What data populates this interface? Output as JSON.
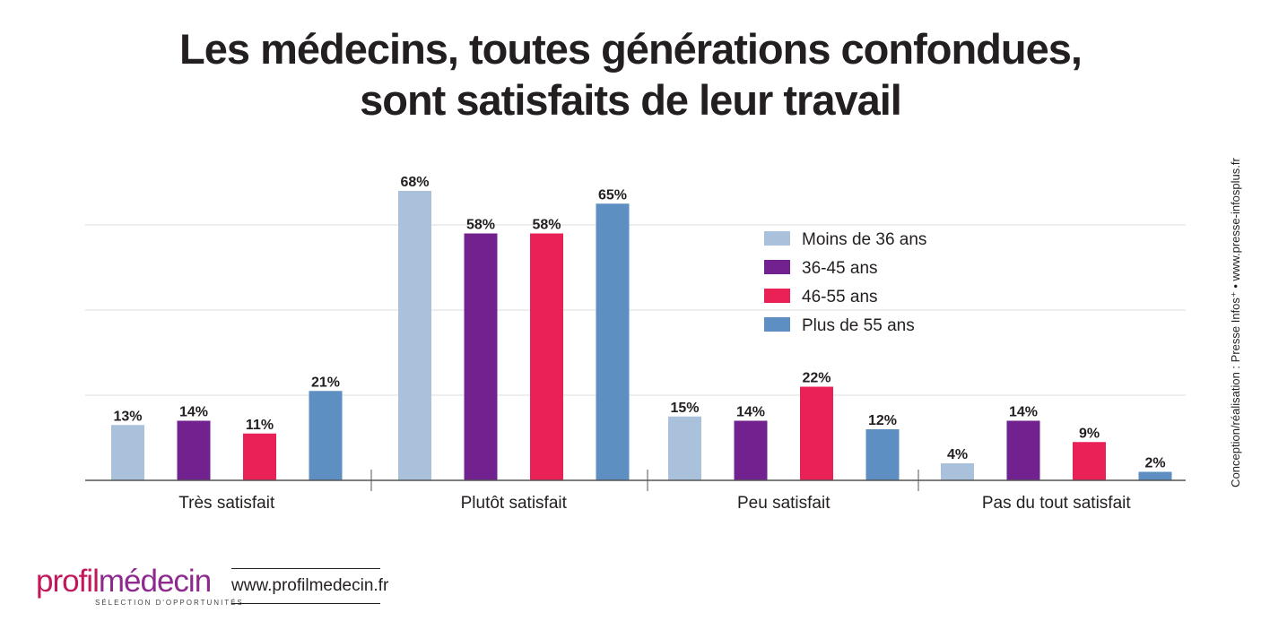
{
  "title_lines": [
    "Les médecins, toutes générations confondues,",
    "sont satisfaits de leur travail"
  ],
  "credit": "Conception/réalisation : Presse Infos⁺ • www.presse-infosplus.fr",
  "logo": {
    "part1": "profil",
    "part2": "médecin",
    "tagline": "SÉLECTION D'OPPORTUNITÉS"
  },
  "website": "www.profilmedecin.fr",
  "colors": {
    "Moins de 36 ans": "#aac1dc",
    "36-45 ans": "#72228f",
    "46-55 ans": "#ea2156",
    "Plus de 55 ans": "#5e8fc2"
  },
  "chart_data": {
    "type": "bar",
    "title": "Les médecins, toutes générations confondues, sont satisfaits de leur travail",
    "categories": [
      "Très satisfait",
      "Plutôt satisfait",
      "Peu satisfait",
      "Pas du tout satisfait"
    ],
    "series": [
      {
        "name": "Moins de 36 ans",
        "values": [
          13,
          68,
          15,
          4
        ],
        "labels": [
          "13%",
          "68%",
          "15%",
          "4%"
        ]
      },
      {
        "name": "36-45 ans",
        "values": [
          14,
          58,
          14,
          14
        ],
        "labels": [
          "14%",
          "58%",
          "14%",
          "14%"
        ]
      },
      {
        "name": "46-55 ans",
        "values": [
          11,
          58,
          22,
          9
        ],
        "labels": [
          "11%",
          "58%",
          "22%",
          "9%"
        ]
      },
      {
        "name": "Plus de 55 ans",
        "values": [
          21,
          65,
          12,
          2
        ],
        "labels": [
          "21%",
          "65%",
          "12%",
          "2%"
        ]
      }
    ],
    "ylim": [
      0,
      80
    ],
    "grid": true,
    "legend_position": "upper-right-inside",
    "unit": "%"
  }
}
